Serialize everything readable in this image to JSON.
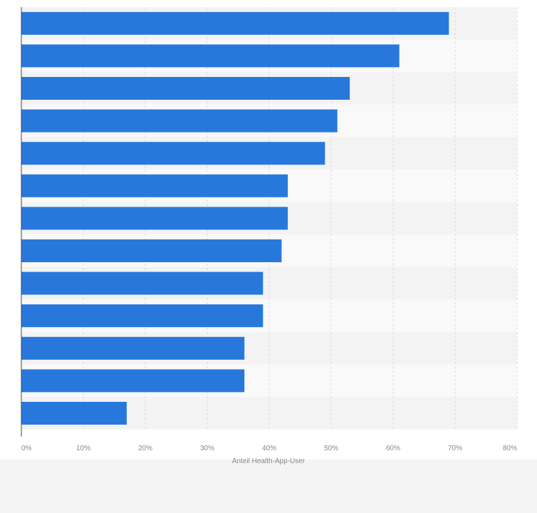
{
  "chart_data": {
    "type": "bar",
    "orientation": "horizontal",
    "categories": [
      "",
      "",
      "",
      "",
      "",
      "",
      "",
      "",
      "",
      "",
      "",
      "",
      ""
    ],
    "values": [
      69,
      61,
      53,
      51,
      49,
      43,
      43,
      42,
      39,
      39,
      36,
      36,
      17
    ],
    "xlabel": "Anteil Health-App-User",
    "ylabel": "",
    "xlim": [
      0,
      80
    ],
    "unit": "%",
    "tick_labels": [
      "0%",
      "10%",
      "20%",
      "30%",
      "40%",
      "50%",
      "60%",
      "70%",
      "80%"
    ],
    "grid": true,
    "legend": "none",
    "colors": {
      "bar": "#2878dc",
      "band_dark": "#f3f3f3",
      "band_light": "#f9f9f9",
      "grid": "#dadada",
      "axis": "#444444",
      "tick_text": "#888888",
      "label_text": "#888888"
    }
  }
}
